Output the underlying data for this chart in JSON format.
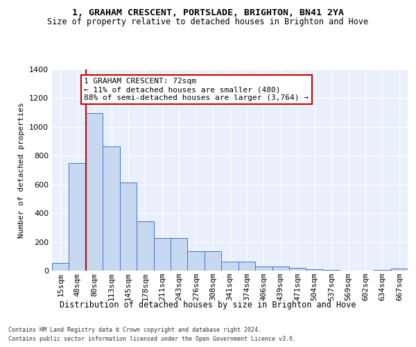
{
  "title": "1, GRAHAM CRESCENT, PORTSLADE, BRIGHTON, BN41 2YA",
  "subtitle": "Size of property relative to detached houses in Brighton and Hove",
  "xlabel": "Distribution of detached houses by size in Brighton and Hove",
  "ylabel": "Number of detached properties",
  "categories": [
    "15sqm",
    "48sqm",
    "80sqm",
    "113sqm",
    "145sqm",
    "178sqm",
    "211sqm",
    "243sqm",
    "276sqm",
    "308sqm",
    "341sqm",
    "374sqm",
    "406sqm",
    "439sqm",
    "471sqm",
    "504sqm",
    "537sqm",
    "569sqm",
    "602sqm",
    "634sqm",
    "667sqm"
  ],
  "values": [
    52,
    750,
    1095,
    865,
    615,
    345,
    225,
    225,
    135,
    135,
    65,
    65,
    28,
    28,
    17,
    10,
    3,
    0,
    0,
    3,
    15
  ],
  "bar_color": "#c6d9f1",
  "bar_edge_color": "#4472c4",
  "vline_x_idx": 1,
  "vline_color": "#cc0000",
  "annotation_text": "1 GRAHAM CRESCENT: 72sqm\n← 11% of detached houses are smaller (480)\n88% of semi-detached houses are larger (3,764) →",
  "annotation_box_color": "#ffffff",
  "annotation_box_edge": "#cc0000",
  "ylim": [
    0,
    1400
  ],
  "yticks": [
    0,
    200,
    400,
    600,
    800,
    1000,
    1200,
    1400
  ],
  "footer1": "Contains HM Land Registry data © Crown copyright and database right 2024.",
  "footer2": "Contains public sector information licensed under the Open Government Licence v3.0.",
  "bg_color": "#eaf0fb",
  "fig_bg_color": "#ffffff",
  "title_fontsize": 9.5,
  "subtitle_fontsize": 8.5,
  "ylabel_fontsize": 8,
  "xlabel_fontsize": 8.5,
  "tick_fontsize": 8,
  "annot_fontsize": 8,
  "footer_fontsize": 6
}
